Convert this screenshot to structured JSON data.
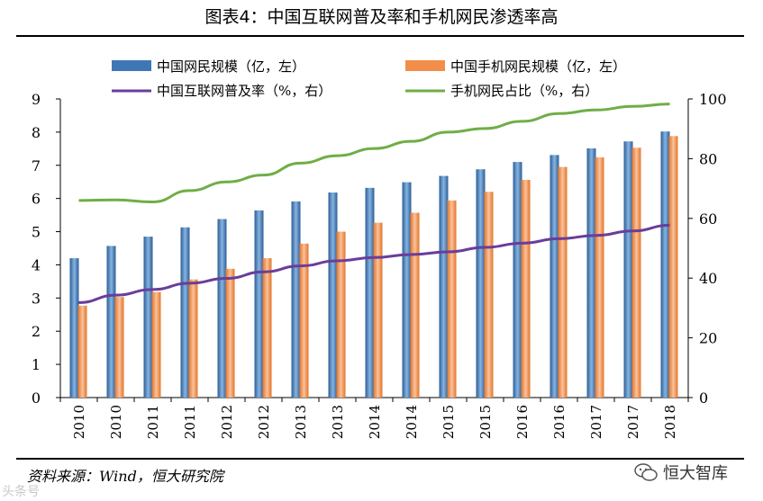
{
  "title": "图表4：中国互联网普及率和手机网民渗透率高",
  "source": "资料来源：Wind，恒大研究院",
  "brand": "恒大智库",
  "watermark": "头条号",
  "colors": {
    "blue": "#3f77b5",
    "orange": "#f28d4a",
    "purple": "#6a3d9a",
    "green": "#6fae46"
  },
  "chart_data": {
    "type": "bar",
    "categories": [
      "2010",
      "2010",
      "2011",
      "2011",
      "2012",
      "2012",
      "2013",
      "2013",
      "2014",
      "2014",
      "2015",
      "2015",
      "2016",
      "2016",
      "2017",
      "2017",
      "2018"
    ],
    "series": [
      {
        "name": "中国网民规模（亿，左）",
        "axis": "left",
        "kind": "bar",
        "values": [
          4.2,
          4.57,
          4.85,
          5.13,
          5.38,
          5.64,
          5.91,
          6.18,
          6.32,
          6.49,
          6.68,
          6.88,
          7.1,
          7.31,
          7.51,
          7.72,
          8.02
        ]
      },
      {
        "name": "中国手机网民规模（亿，左）",
        "axis": "left",
        "kind": "bar",
        "values": [
          2.77,
          3.03,
          3.18,
          3.56,
          3.88,
          4.2,
          4.64,
          5.0,
          5.27,
          5.57,
          5.94,
          6.2,
          6.56,
          6.95,
          7.24,
          7.53,
          7.88
        ]
      },
      {
        "name": "中国互联网普及率（%，右）",
        "axis": "right",
        "kind": "line",
        "values": [
          31.8,
          34.3,
          36.2,
          38.3,
          39.9,
          42.1,
          44.1,
          45.8,
          46.9,
          47.9,
          48.8,
          50.3,
          51.7,
          53.2,
          54.3,
          55.8,
          57.7
        ]
      },
      {
        "name": "手机网民占比（%，右）",
        "axis": "right",
        "kind": "line",
        "values": [
          66.0,
          66.2,
          65.5,
          69.3,
          72.2,
          74.5,
          78.5,
          81.0,
          83.4,
          85.8,
          88.9,
          90.1,
          92.5,
          95.1,
          96.3,
          97.5,
          98.3
        ]
      }
    ],
    "ylim_left": [
      0,
      9
    ],
    "yticks_left": [
      "0",
      "1",
      "2",
      "3",
      "4",
      "5",
      "6",
      "7",
      "8",
      "9"
    ],
    "ylim_right": [
      0,
      100
    ],
    "yticks_right": [
      "0",
      "20",
      "40",
      "60",
      "80",
      "100"
    ],
    "legend_position": "top"
  }
}
